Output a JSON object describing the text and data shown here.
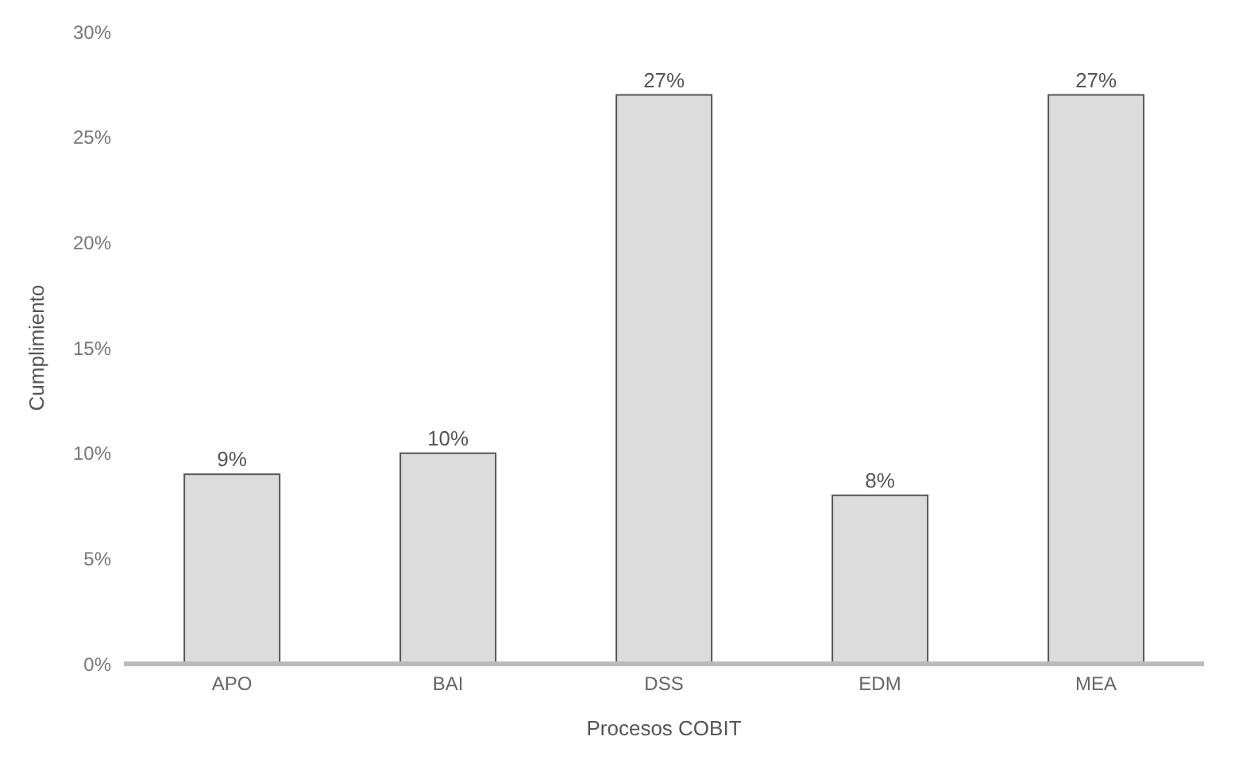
{
  "chart_data": {
    "type": "bar",
    "xlabel": "Procesos COBIT",
    "ylabel": "Cumplimiento",
    "categories": [
      "APO",
      "BAI",
      "DSS",
      "EDM",
      "MEA"
    ],
    "values": [
      9,
      10,
      27,
      8,
      27
    ],
    "value_labels": [
      "9%",
      "10%",
      "27%",
      "8%",
      "27%"
    ],
    "color": "#dcdcdc",
    "ylim": [
      0,
      30
    ],
    "yticks": [
      {
        "value": 0,
        "label": "0%"
      },
      {
        "value": 5,
        "label": "5%"
      },
      {
        "value": 10,
        "label": "10%"
      },
      {
        "value": 15,
        "label": "15%"
      },
      {
        "value": 20,
        "label": "20%"
      },
      {
        "value": 25,
        "label": "25%"
      },
      {
        "value": 30,
        "label": "30%"
      }
    ],
    "grid": false
  }
}
